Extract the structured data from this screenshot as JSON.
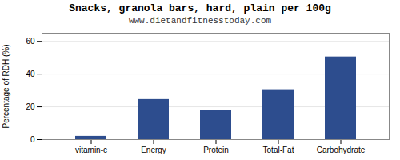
{
  "chart_data": {
    "type": "bar",
    "title": "Snacks, granola bars, hard, plain per 100g",
    "subtitle": "www.dietandfitnesstoday.com",
    "categories": [
      "vitamin-c",
      "Energy",
      "Protein",
      "Total-Fat",
      "Carbohydrate"
    ],
    "values": [
      2,
      24.5,
      18,
      30.5,
      50.5
    ],
    "color": "#2d4d8e",
    "ylabel": "Percentage of RDH (%)",
    "ylim": [
      0,
      65
    ],
    "yticks": [
      0,
      20,
      40,
      60
    ],
    "grid": true
  }
}
